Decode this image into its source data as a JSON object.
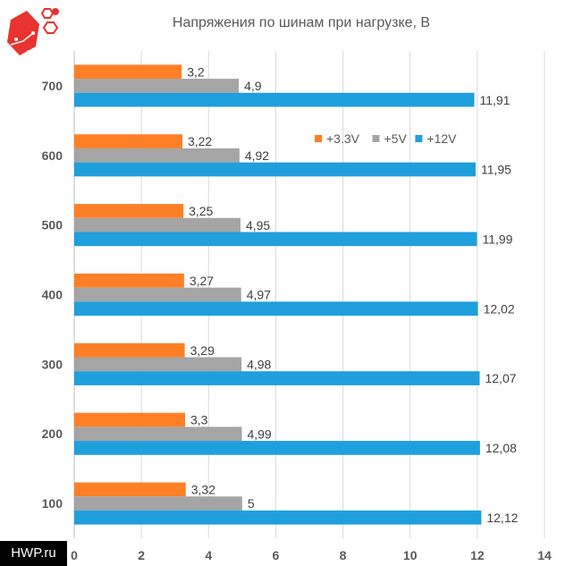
{
  "watermark": "HWP.ru",
  "chart_data": {
    "type": "bar",
    "orientation": "horizontal",
    "title": "Напряжения по шинам при нагрузке, В",
    "categories": [
      "700",
      "600",
      "500",
      "400",
      "300",
      "200",
      "100"
    ],
    "series": [
      {
        "name": "+3.3V",
        "color": "#FF7F27",
        "values": [
          3.2,
          3.22,
          3.25,
          3.27,
          3.29,
          3.3,
          3.32
        ],
        "labels": [
          "3,2",
          "3,22",
          "3,25",
          "3,27",
          "3,29",
          "3,3",
          "3,32"
        ]
      },
      {
        "name": "+5V",
        "color": "#A5A5A5",
        "values": [
          4.9,
          4.92,
          4.95,
          4.97,
          4.98,
          4.99,
          5
        ],
        "labels": [
          "4,9",
          "4,92",
          "4,95",
          "4,97",
          "4,98",
          "4,99",
          "5"
        ]
      },
      {
        "name": "+12V",
        "color": "#1F9FDC",
        "values": [
          11.91,
          11.95,
          11.99,
          12.02,
          12.07,
          12.08,
          12.12
        ],
        "labels": [
          "11,91",
          "11,95",
          "11,99",
          "12,02",
          "12,07",
          "12,08",
          "12,12"
        ]
      }
    ],
    "xlim": [
      0,
      14
    ],
    "xticks": [
      "0",
      "2",
      "4",
      "6",
      "8",
      "10",
      "12",
      "14"
    ],
    "grid": true,
    "legend_position": "top-right"
  }
}
